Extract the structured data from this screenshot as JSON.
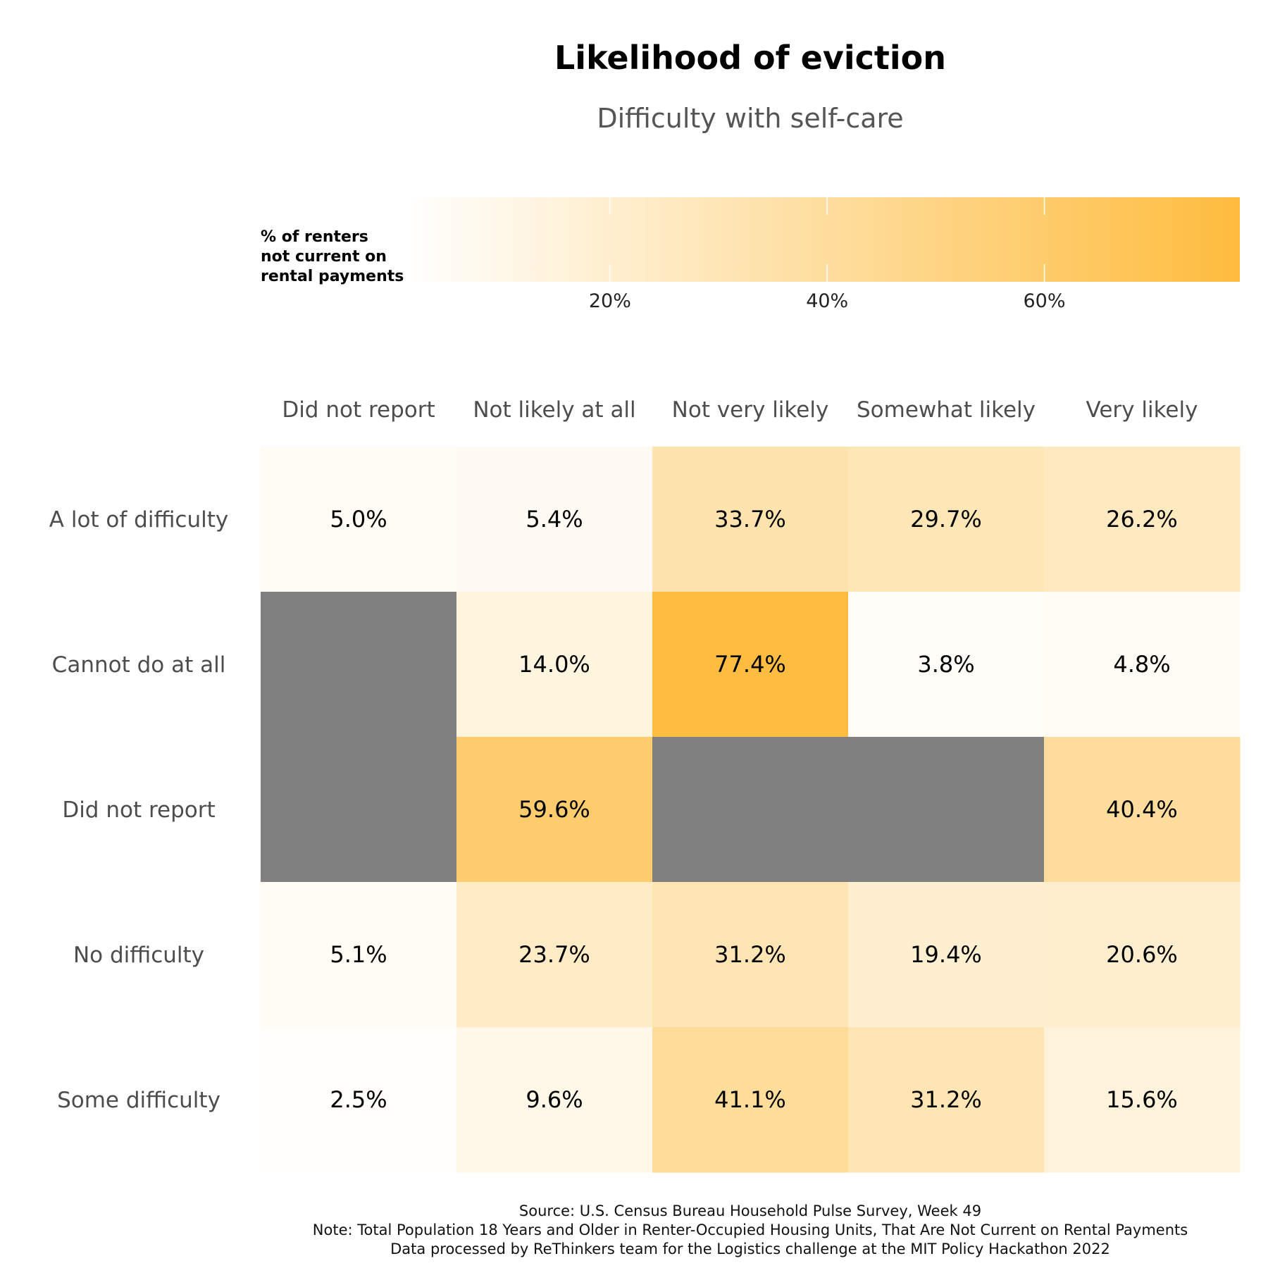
{
  "chart_data": {
    "type": "heatmap",
    "title": "Likelihood of eviction",
    "subtitle": "Difficulty with self-care",
    "legend": {
      "title_lines": [
        "% of renters",
        "not current on",
        "rental payments"
      ],
      "placement": "top",
      "range": [
        1,
        78
      ],
      "ticks": [
        20,
        40,
        60
      ],
      "tick_labels": [
        "20%",
        "40%",
        "60%"
      ],
      "color_low": "#ffffff",
      "color_high": "#febc3e"
    },
    "columns": [
      "Did not report",
      "Not likely at all",
      "Not very likely",
      "Somewhat likely",
      "Very likely"
    ],
    "rows": [
      "A lot of difficulty",
      "Cannot do at all",
      "Did not report",
      "No difficulty",
      "Some difficulty"
    ],
    "values": [
      [
        5.0,
        5.4,
        33.7,
        29.7,
        26.2
      ],
      [
        null,
        14.0,
        77.4,
        3.8,
        4.8
      ],
      [
        null,
        59.6,
        null,
        null,
        40.4
      ],
      [
        5.1,
        23.7,
        31.2,
        19.4,
        20.6
      ],
      [
        2.5,
        9.6,
        41.1,
        31.2,
        15.6
      ]
    ],
    "labels": [
      [
        "5.0%",
        "5.4%",
        "33.7%",
        "29.7%",
        "26.2%"
      ],
      [
        "",
        "14.0%",
        "77.4%",
        "3.8%",
        "4.8%"
      ],
      [
        "",
        "59.6%",
        "",
        "",
        "40.4%"
      ],
      [
        "5.1%",
        "23.7%",
        "31.2%",
        "19.4%",
        "20.6%"
      ],
      [
        "2.5%",
        "9.6%",
        "41.1%",
        "31.2%",
        "15.6%"
      ]
    ],
    "na_color": "#808080",
    "caption_lines": [
      "Source: U.S. Census Bureau Household Pulse Survey, Week 49",
      "Note: Total Population 18 Years and Older in Renter-Occupied Housing Units, That Are Not Current on Rental Payments",
      "Data processed by ReThinkers team for the Logistics challenge at the MIT Policy Hackathon 2022"
    ]
  }
}
